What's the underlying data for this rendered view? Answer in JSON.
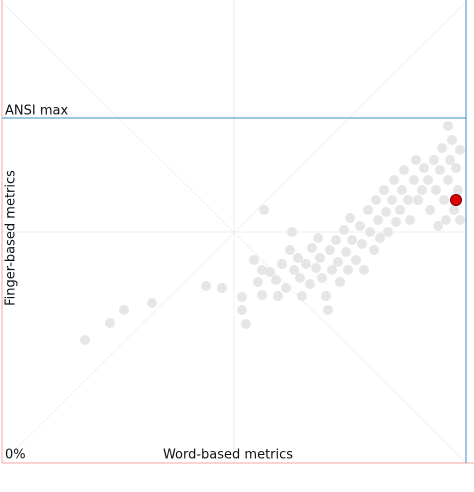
{
  "chart_data": {
    "type": "scatter",
    "x_label": "Word-based metrics",
    "y_label": "Finger-based metrics",
    "xlim": [
      0,
      464
    ],
    "ylim": [
      0,
      461
    ],
    "yticks": [
      {
        "value": 0,
        "label": "0%"
      }
    ],
    "reference_lines": [
      {
        "label": "ANSI max",
        "value": 345,
        "color": "#3a8fc0"
      }
    ],
    "series": [
      {
        "color": "#e6e6e6",
        "x": [
          83,
          108,
          122,
          150,
          204,
          220,
          240,
          240,
          244,
          252,
          256,
          260,
          260,
          262,
          268,
          274,
          276,
          280,
          284,
          288,
          290,
          292,
          296,
          298,
          300,
          304,
          308,
          310,
          314,
          316,
          318,
          320,
          324,
          326,
          328,
          330,
          334,
          336,
          338,
          342,
          344,
          346,
          348,
          350,
          354,
          358,
          360,
          362,
          366,
          368,
          372,
          374,
          376,
          378,
          382,
          384,
          386,
          390,
          392,
          394,
          398,
          400,
          402,
          406,
          408,
          412,
          414,
          416,
          420,
          422,
          426,
          428,
          432,
          434,
          438,
          440,
          442,
          446,
          448,
          450,
          452,
          454,
          456,
          458,
          458,
          446,
          444,
          436
        ],
        "values": [
          123,
          140,
          153,
          160,
          177,
          175,
          166,
          153,
          139,
          203,
          181,
          193,
          168,
          253,
          191,
          183,
          167,
          199,
          175,
          213,
          231,
          193,
          205,
          185,
          167,
          199,
          179,
          215,
          195,
          225,
          205,
          185,
          167,
          153,
          213,
          193,
          223,
          201,
          181,
          233,
          211,
          193,
          245,
          223,
          203,
          237,
          219,
          193,
          253,
          231,
          213,
          263,
          243,
          225,
          273,
          251,
          231,
          263,
          283,
          241,
          253,
          273,
          293,
          263,
          243,
          283,
          303,
          263,
          273,
          295,
          283,
          253,
          303,
          273,
          293,
          315,
          263,
          283,
          303,
          323,
          253,
          295,
          273,
          313,
          243,
          337,
          243,
          237
        ]
      },
      {
        "color": "#dd0000",
        "x": [
          454
        ],
        "values": [
          263
        ]
      }
    ]
  }
}
